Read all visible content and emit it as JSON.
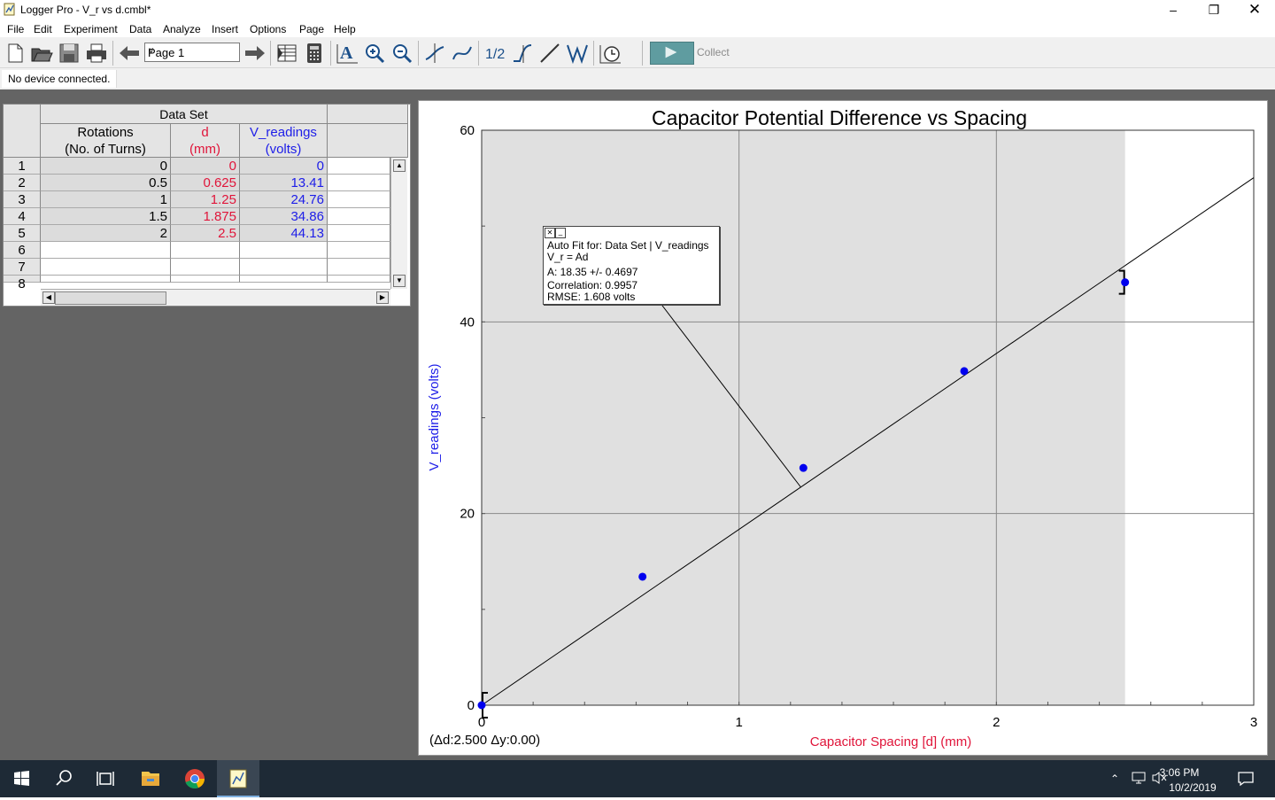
{
  "window": {
    "title": "Logger Pro - V_r vs d.cmbl*",
    "minimize_icon": "minimize-icon",
    "restore_icon": "restore-icon",
    "close_icon": "close-icon"
  },
  "menu": [
    "File",
    "Edit",
    "Experiment",
    "Data",
    "Analyze",
    "Insert",
    "Options",
    "Page",
    "Help"
  ],
  "toolbar": {
    "page_select": "Page 1",
    "collect_label": "Collect",
    "icons": [
      "new-file-icon",
      "open-folder-icon",
      "save-icon",
      "print-icon",
      "back-arrow-icon",
      "page-select",
      "forward-arrow-icon",
      "data-browser-icon",
      "calculator-icon",
      "autoscale-icon",
      "zoom-in-icon",
      "zoom-out-icon",
      "examine-icon",
      "tangent-icon",
      "integral-icon",
      "statistics-icon",
      "linear-fit-icon",
      "curve-fit-icon",
      "replay-icon",
      "collect-button"
    ],
    "accent": "#5f9ca0"
  },
  "status": {
    "text": "No device connected."
  },
  "data_table": {
    "title": "Data Set",
    "columns": [
      {
        "line1": "Rotations",
        "line2": "(No. of Turns)",
        "color": "#000000"
      },
      {
        "line1": "d",
        "line2": "(mm)",
        "color": "#e0153a"
      },
      {
        "line1": "V_readings",
        "line2": "(volts)",
        "color": "#1d1de8"
      }
    ],
    "row_numbers": [
      "1",
      "2",
      "3",
      "4",
      "5",
      "6",
      "7",
      "8"
    ],
    "rows": [
      [
        "0",
        "0",
        "0"
      ],
      [
        "0.5",
        "0.625",
        "13.41"
      ],
      [
        "1",
        "1.25",
        "24.76"
      ],
      [
        "1.5",
        "1.875",
        "34.86"
      ],
      [
        "2",
        "2.5",
        "44.13"
      ]
    ]
  },
  "fit_box": {
    "line1": "Auto Fit for: Data Set | V_readings",
    "line2": "V_r = Ad",
    "line3": "A: 18.35 +/- 0.4697",
    "line4": "Correlation: 0.9957",
    "line5": "RMSE: 1.608 volts"
  },
  "delta_readout": "(Δd:2.500  Δy:0.00)",
  "chart_data": {
    "type": "scatter",
    "title": "Capacitor Potential Difference vs Spacing",
    "xlabel": "Capacitor Spacing [d] (mm)",
    "ylabel": "V_readings (volts)",
    "xlim": [
      0,
      3
    ],
    "ylim": [
      0,
      60
    ],
    "x_ticks": [
      "0",
      "1",
      "2",
      "3"
    ],
    "y_ticks": [
      "0",
      "20",
      "40",
      "60"
    ],
    "grid": true,
    "series": [
      {
        "name": "V_readings",
        "x": [
          0,
          0.625,
          1.25,
          1.875,
          2.5
        ],
        "y": [
          0,
          13.41,
          24.76,
          34.86,
          44.13
        ],
        "color": "#0000ee"
      }
    ],
    "fit": {
      "equation": "V_r = Ad",
      "A": 18.35
    },
    "selected_range": [
      0,
      2.5
    ],
    "xlabel_color": "#e0153a",
    "ylabel_color": "#1d1de8"
  },
  "taskbar": {
    "time": "3:06 PM",
    "date": "10/2/2019",
    "icons": [
      "windows-start-icon",
      "search-icon",
      "task-view-icon",
      "file-explorer-icon",
      "chrome-icon",
      "logger-pro-icon",
      "chevron-up-icon",
      "network-icon",
      "speaker-muted-icon",
      "notification-icon"
    ]
  }
}
